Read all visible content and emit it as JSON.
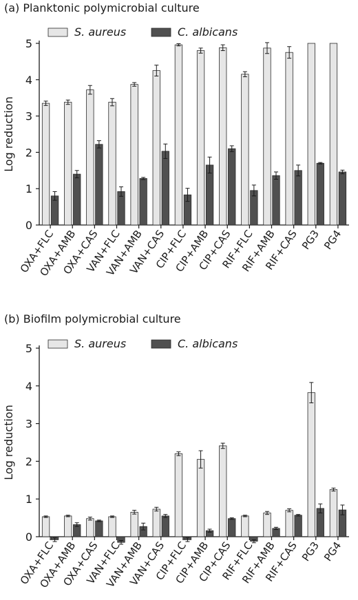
{
  "colors": {
    "saureus": "#e6e6e6",
    "calbicans": "#505050",
    "axis": "#1a1a1a"
  },
  "chart_data": [
    {
      "type": "bar",
      "title": "(a) Planktonic polymicrobial culture",
      "ylabel": "Log reduction",
      "ylim": [
        0,
        5
      ],
      "yticks": [
        0,
        1,
        2,
        3,
        4,
        5
      ],
      "legend_placement": "top-left",
      "categories": [
        "OXA+FLC",
        "OXA+AMB",
        "OXA+CAS",
        "VAN+FLC",
        "VAN+AMB",
        "VAN+CAS",
        "CIP+FLC",
        "CIP+AMB",
        "CIP+CAS",
        "RIF+FLC",
        "RIF+AMB",
        "RIF+CAS",
        "PG3",
        "PG4"
      ],
      "series": [
        {
          "name": "S. aureus",
          "values": [
            3.35,
            3.38,
            3.72,
            3.38,
            3.87,
            4.25,
            4.96,
            4.8,
            4.88,
            4.15,
            4.87,
            4.75,
            5.0,
            5.0
          ],
          "errors": [
            0.06,
            0.06,
            0.12,
            0.1,
            0.05,
            0.15,
            0.03,
            0.07,
            0.08,
            0.07,
            0.15,
            0.16,
            0,
            0
          ]
        },
        {
          "name": "C. albicans",
          "values": [
            0.8,
            1.4,
            2.22,
            0.92,
            1.28,
            2.03,
            0.83,
            1.65,
            2.1,
            0.95,
            1.36,
            1.5,
            1.7,
            1.46
          ],
          "errors": [
            0.12,
            0.1,
            0.1,
            0.13,
            0.03,
            0.2,
            0.18,
            0.22,
            0.08,
            0.15,
            0.1,
            0.15,
            0.02,
            0.05
          ]
        }
      ]
    },
    {
      "type": "bar",
      "title": "(b) Biofilm polymicrobial culture",
      "ylabel": "Log reduction",
      "ylim": [
        0,
        5
      ],
      "yticks": [
        0,
        1,
        2,
        3,
        4,
        5
      ],
      "legend_placement": "top-left",
      "categories": [
        "OXA+FLC",
        "OXA+AMB",
        "OXA+CAS",
        "VAN+FLC",
        "VAN+AMB",
        "VAN+CAS",
        "CIP+FLC",
        "CIP+AMB",
        "CIP+CAS",
        "RIF+FLC",
        "RIF+AMB",
        "RIF+CAS",
        "PG3",
        "PG4"
      ],
      "series": [
        {
          "name": "S. aureus",
          "values": [
            0.53,
            0.55,
            0.48,
            0.53,
            0.65,
            0.73,
            2.2,
            2.05,
            2.41,
            0.55,
            0.63,
            0.7,
            3.82,
            1.25
          ],
          "errors": [
            0.02,
            0.02,
            0.04,
            0.02,
            0.05,
            0.05,
            0.05,
            0.23,
            0.07,
            0.02,
            0.04,
            0.04,
            0.27,
            0.04
          ]
        },
        {
          "name": "C. albicans",
          "values": [
            -0.08,
            0.32,
            0.42,
            -0.15,
            0.27,
            0.55,
            -0.08,
            0.16,
            0.48,
            -0.12,
            0.22,
            0.57,
            0.75,
            0.71
          ],
          "errors": [
            0.05,
            0.05,
            0.02,
            0.05,
            0.09,
            0.04,
            0.05,
            0.04,
            0.02,
            0.04,
            0.03,
            0.02,
            0.12,
            0.13
          ]
        }
      ]
    }
  ]
}
